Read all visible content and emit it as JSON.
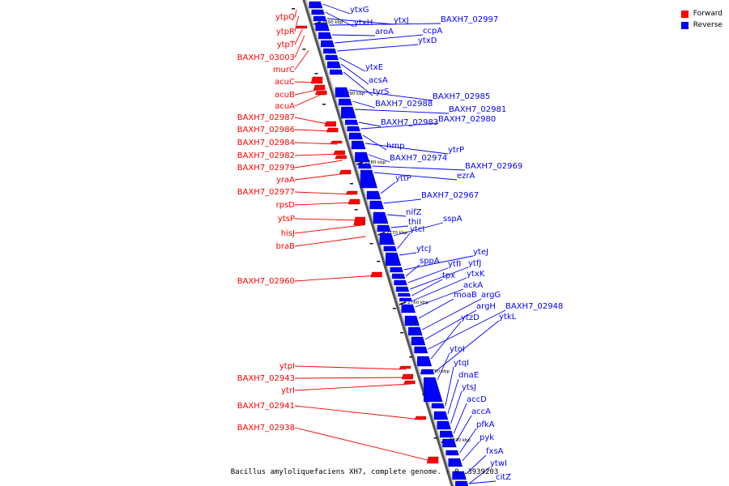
{
  "legend": {
    "forward": {
      "label": "Forward",
      "color": "#ff0000"
    },
    "reverse": {
      "label": "Reverse",
      "color": "#0000ff"
    }
  },
  "caption": "Bacillus amyloliquefaciens XH7, complete genome. - 0..3939203",
  "ticks": [
    "2800 kbp",
    "2790 kbp",
    "2780 kbp",
    "2770 kbp",
    "2760 kbp",
    "2750 kbp",
    "2740 kbp"
  ],
  "forward_genes": [
    "ytpQ",
    "ytpR",
    "ytpT",
    "BAXH7_03003",
    "murC",
    "acuC",
    "acuB",
    "acuA",
    "BAXH7_02987",
    "BAXH7_02986",
    "BAXH7_02984",
    "BAXH7_02982",
    "BAXH7_02979",
    "yraA",
    "BAXH7_02977",
    "rpsD",
    "ytsP",
    "hisJ",
    "braB",
    "BAXH7_02960",
    "ytpI",
    "BAXH7_02943",
    "ytrI",
    "BAXH7_02941",
    "BAXH7_02938"
  ],
  "reverse_genes": [
    "ytxG",
    "ytxH",
    "ytxJ",
    "BAXH7_02997",
    "aroA",
    "ccpA",
    "ytxD",
    "ytxE",
    "acsA",
    "tyrS",
    "BAXH7_02985",
    "BAXH7_02988",
    "BAXH7_02981",
    "BAXH7_02983",
    "BAXH7_02980",
    "hmp",
    "ytrP",
    "BAXH7_02974",
    "BAXH7_02969",
    "ezrA",
    "yttP",
    "BAXH7_02967",
    "nifZ",
    "thiI",
    "sspA",
    "ytcI",
    "ytcJ",
    "yteJ",
    "sppA",
    "ytfI",
    "ytfJ",
    "tpx",
    "ytxK",
    "ackA",
    "moaB",
    "argG",
    "argH",
    "BAXH7_02948",
    "ytzD",
    "ytkL",
    "ytoI",
    "ytqI",
    "dnaE",
    "ytsJ",
    "accD",
    "accA",
    "pfkA",
    "pyk",
    "fxsA",
    "ytwI",
    "citZ"
  ]
}
